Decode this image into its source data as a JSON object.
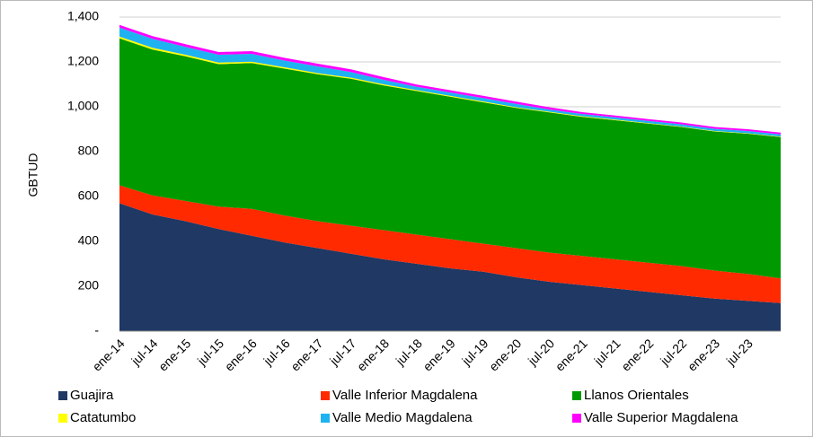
{
  "chart_data": {
    "type": "stacked-area",
    "y_label": "GBTUD",
    "categories": [
      "ene-14",
      "jul-14",
      "ene-15",
      "jul-15",
      "ene-16",
      "jul-16",
      "ene-17",
      "jul-17",
      "ene-18",
      "jul-18",
      "ene-19",
      "jul-19",
      "ene-20",
      "jul-20",
      "ene-21",
      "jul-21",
      "ene-22",
      "jul-22",
      "ene-23",
      "jul-23",
      null
    ],
    "series": [
      {
        "name": "Guajira",
        "color": "#1f3864",
        "values": [
          570,
          520,
          490,
          455,
          425,
          395,
          370,
          345,
          320,
          300,
          280,
          265,
          240,
          220,
          205,
          190,
          175,
          160,
          145,
          135,
          125
        ]
      },
      {
        "name": "Valle Inferior Magdalena",
        "color": "#ff2a00",
        "values": [
          80,
          85,
          90,
          100,
          120,
          120,
          120,
          125,
          130,
          130,
          130,
          125,
          130,
          130,
          130,
          130,
          130,
          130,
          125,
          120,
          110
        ]
      },
      {
        "name": "Llanos Orientales",
        "color": "#009900",
        "values": [
          655,
          650,
          645,
          635,
          650,
          655,
          655,
          655,
          645,
          640,
          635,
          630,
          625,
          625,
          620,
          620,
          620,
          620,
          620,
          625,
          630
        ]
      },
      {
        "name": "Catatumbo",
        "color": "#ffff00",
        "values": [
          8,
          8,
          7,
          7,
          6,
          6,
          5,
          5,
          5,
          4,
          4,
          4,
          3,
          3,
          3,
          3,
          2,
          2,
          2,
          2,
          2
        ]
      },
      {
        "name": "Valle Medio Magdalena",
        "color": "#1fb2f0",
        "values": [
          40,
          40,
          35,
          35,
          35,
          30,
          30,
          25,
          20,
          15,
          15,
          15,
          15,
          10,
          10,
          10,
          10,
          10,
          10,
          10,
          10
        ]
      },
      {
        "name": "Valle Superior Magdalena",
        "color": "#ff00ff",
        "values": [
          12,
          12,
          12,
          12,
          12,
          12,
          12,
          12,
          12,
          10,
          10,
          10,
          10,
          10,
          8,
          8,
          8,
          8,
          8,
          8,
          8
        ]
      }
    ],
    "ylim": [
      0,
      1400
    ],
    "yticks": [
      {
        "value": 0,
        "label": "-"
      },
      200,
      400,
      600,
      800,
      {
        "value": 1000,
        "label": "1,000"
      },
      {
        "value": 1200,
        "label": "1,200"
      },
      {
        "value": 1400,
        "label": "1,400"
      }
    ],
    "grid": true
  }
}
